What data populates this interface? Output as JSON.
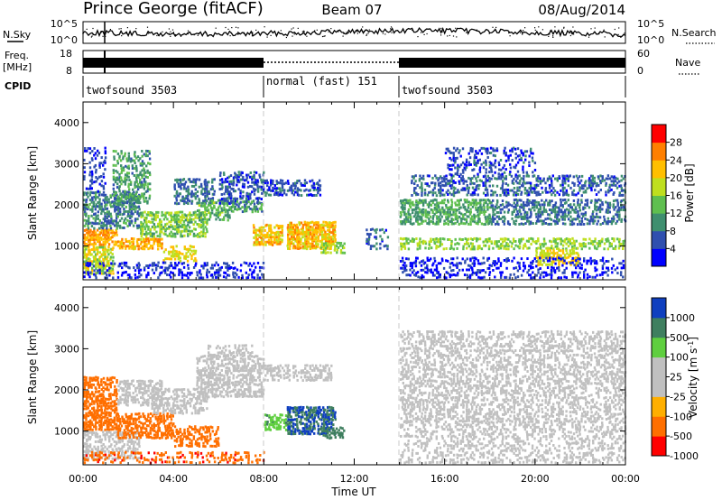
{
  "header": {
    "station": "Prince George (fitACF)",
    "beam": "Beam 07",
    "date": "08/Aug/2014"
  },
  "summary_panels": {
    "nsky": {
      "label": "N.Sky",
      "right_label": "N.Search",
      "left_ticks": [
        "10^5",
        "10^0"
      ],
      "right_ticks": [
        "10^5",
        "10^0"
      ]
    },
    "freq": {
      "label_line1": "Freq.",
      "label_line2": "[MHz]",
      "right_label": "Nave",
      "left_ticks": [
        "18",
        "8"
      ],
      "right_ticks": [
        "60",
        "0"
      ]
    },
    "cpid": {
      "label": "CPID",
      "segments": [
        {
          "start": "00:00",
          "end": "08:00",
          "text": "twofsound 3503"
        },
        {
          "start": "08:00",
          "end": "14:00",
          "text": "normal (fast) 151"
        },
        {
          "start": "14:00",
          "end": "24:00",
          "text": "twofsound 3503"
        }
      ]
    }
  },
  "colors": {
    "power": [
      "#0000ff",
      "#2f4faf",
      "#3f8f6f",
      "#5fbf4f",
      "#bfdf1f",
      "#ffbf00",
      "#ff7f00",
      "#ff0000"
    ],
    "velocity": [
      "#ff0000",
      "#ff6f00",
      "#ffaf00",
      "#c0c0c0",
      "#c0c0c0",
      "#5fcf3f",
      "#3f7f5f",
      "#0f3fbf"
    ],
    "ground_scatter": "#c0c0c0"
  },
  "chart_data": [
    {
      "type": "heatmap",
      "panel": "power",
      "ylabel": "Slant Range [km]",
      "xlabel": "Time UT",
      "xlim": [
        "00:00",
        "24:00"
      ],
      "ylim": [
        180,
        4500
      ],
      "x_ticks": [
        "00:00",
        "04:00",
        "08:00",
        "12:00",
        "16:00",
        "20:00",
        "00:00"
      ],
      "y_ticks": [
        "1000",
        "2000",
        "3000",
        "4000"
      ],
      "colorbar_label": "Power [dB]",
      "colorbar_ticks": [
        "4",
        "8",
        "12",
        "16",
        "20",
        "24",
        "28"
      ],
      "scatter_bands": [
        {
          "t0": 0.0,
          "t1": 1.3,
          "r0": 300,
          "r1": 1000,
          "v": 20,
          "d": 0.7
        },
        {
          "t0": 0.0,
          "t1": 1.5,
          "r0": 1000,
          "r1": 1400,
          "v": 26,
          "d": 0.8
        },
        {
          "t0": 0.0,
          "t1": 2.5,
          "r0": 1400,
          "r1": 2300,
          "v": 11,
          "d": 0.6
        },
        {
          "t0": 0.0,
          "t1": 1.0,
          "r0": 2300,
          "r1": 3400,
          "v": 6,
          "d": 0.3
        },
        {
          "t0": 1.3,
          "t1": 3.0,
          "r0": 2000,
          "r1": 3300,
          "v": 13,
          "d": 0.5
        },
        {
          "t0": 1.5,
          "t1": 3.5,
          "r0": 900,
          "r1": 1200,
          "v": 25,
          "d": 0.7
        },
        {
          "t0": 2.5,
          "t1": 5.5,
          "r0": 1200,
          "r1": 1800,
          "v": 17,
          "d": 0.6
        },
        {
          "t0": 3.5,
          "t1": 5.0,
          "r0": 600,
          "r1": 1000,
          "v": 22,
          "d": 0.5
        },
        {
          "t0": 4.0,
          "t1": 5.8,
          "r0": 2000,
          "r1": 2600,
          "v": 10,
          "d": 0.5
        },
        {
          "t0": 5.0,
          "t1": 6.5,
          "r0": 1600,
          "r1": 2100,
          "v": 15,
          "d": 0.6
        },
        {
          "t0": 6.0,
          "t1": 8.0,
          "r0": 2000,
          "r1": 2800,
          "v": 8,
          "d": 0.5
        },
        {
          "t0": 6.5,
          "t1": 8.0,
          "r0": 1800,
          "r1": 2100,
          "v": 13,
          "d": 0.6
        },
        {
          "t0": 0.0,
          "t1": 8.0,
          "r0": 200,
          "r1": 600,
          "v": 6,
          "d": 0.35
        },
        {
          "t0": 7.5,
          "t1": 8.8,
          "r0": 1000,
          "r1": 1500,
          "v": 24,
          "d": 0.7
        },
        {
          "t0": 9.0,
          "t1": 11.2,
          "r0": 900,
          "r1": 1600,
          "v": 24,
          "d": 0.8
        },
        {
          "t0": 8.0,
          "t1": 10.5,
          "r0": 2200,
          "r1": 2600,
          "v": 8,
          "d": 0.5
        },
        {
          "t0": 10.5,
          "t1": 11.6,
          "r0": 800,
          "r1": 1100,
          "v": 18,
          "d": 0.6
        },
        {
          "t0": 12.5,
          "t1": 13.5,
          "r0": 900,
          "r1": 1400,
          "v": 9,
          "d": 0.35
        },
        {
          "t0": 14.0,
          "t1": 18.0,
          "r0": 1500,
          "r1": 2100,
          "v": 14,
          "d": 0.65
        },
        {
          "t0": 14.0,
          "t1": 24.0,
          "r0": 900,
          "r1": 1200,
          "v": 18,
          "d": 0.5
        },
        {
          "t0": 14.5,
          "t1": 24.0,
          "r0": 2200,
          "r1": 2700,
          "v": 9,
          "d": 0.45
        },
        {
          "t0": 16.0,
          "t1": 20.0,
          "r0": 2700,
          "r1": 3400,
          "v": 7,
          "d": 0.35
        },
        {
          "t0": 18.0,
          "t1": 24.0,
          "r0": 1500,
          "r1": 2100,
          "v": 10,
          "d": 0.5
        },
        {
          "t0": 20.0,
          "t1": 22.0,
          "r0": 500,
          "r1": 900,
          "v": 22,
          "d": 0.55
        },
        {
          "t0": 14.0,
          "t1": 24.0,
          "r0": 200,
          "r1": 700,
          "v": 5,
          "d": 0.3
        }
      ]
    },
    {
      "type": "heatmap",
      "panel": "velocity",
      "ylabel": "Slant Range [km]",
      "xlabel": "Time UT",
      "xlim": [
        "00:00",
        "24:00"
      ],
      "ylim": [
        180,
        4500
      ],
      "x_ticks": [
        "00:00",
        "04:00",
        "08:00",
        "12:00",
        "16:00",
        "20:00",
        "00:00"
      ],
      "y_ticks": [
        "1000",
        "2000",
        "3000",
        "4000"
      ],
      "colorbar_label": "Velocity [m s^-1]",
      "colorbar_ticks": [
        "1000",
        "500",
        "100",
        "25",
        "-25",
        "-100",
        "-500",
        "-1000"
      ],
      "scatter_bands": [
        {
          "t0": 0.0,
          "t1": 1.5,
          "r0": 1000,
          "r1": 2300,
          "v": -300,
          "d": 0.7
        },
        {
          "t0": 0.0,
          "t1": 2.5,
          "r0": 300,
          "r1": 1000,
          "v": 0,
          "d": 0.55
        },
        {
          "t0": 1.5,
          "t1": 3.5,
          "r0": 1600,
          "r1": 2200,
          "v": 0,
          "d": 0.55
        },
        {
          "t0": 1.5,
          "t1": 4.0,
          "r0": 800,
          "r1": 1400,
          "v": -300,
          "d": 0.65
        },
        {
          "t0": 4.0,
          "t1": 6.0,
          "r0": 600,
          "r1": 1100,
          "v": -350,
          "d": 0.55
        },
        {
          "t0": 3.0,
          "t1": 5.5,
          "r0": 1400,
          "r1": 2000,
          "v": 0,
          "d": 0.55
        },
        {
          "t0": 5.0,
          "t1": 8.0,
          "r0": 1800,
          "r1": 2800,
          "v": 0,
          "d": 0.6
        },
        {
          "t0": 5.5,
          "t1": 7.5,
          "r0": 2800,
          "r1": 3100,
          "v": 0,
          "d": 0.5
        },
        {
          "t0": 8.0,
          "t1": 9.0,
          "r0": 1000,
          "r1": 1400,
          "v": 80,
          "d": 0.6
        },
        {
          "t0": 9.0,
          "t1": 11.2,
          "r0": 900,
          "r1": 1600,
          "v": 500,
          "d": 0.75
        },
        {
          "t0": 10.5,
          "t1": 11.6,
          "r0": 800,
          "r1": 1100,
          "v": 200,
          "d": 0.55
        },
        {
          "t0": 8.0,
          "t1": 11.0,
          "r0": 2200,
          "r1": 2600,
          "v": 0,
          "d": 0.5
        },
        {
          "t0": 14.0,
          "t1": 24.0,
          "r0": 1200,
          "r1": 3400,
          "v": 0,
          "d": 0.45
        },
        {
          "t0": 14.0,
          "t1": 24.0,
          "r0": 200,
          "r1": 1200,
          "v": 0,
          "d": 0.35
        },
        {
          "t0": 0.0,
          "t1": 8.0,
          "r0": 200,
          "r1": 500,
          "v": -400,
          "d": 0.35
        }
      ]
    }
  ]
}
